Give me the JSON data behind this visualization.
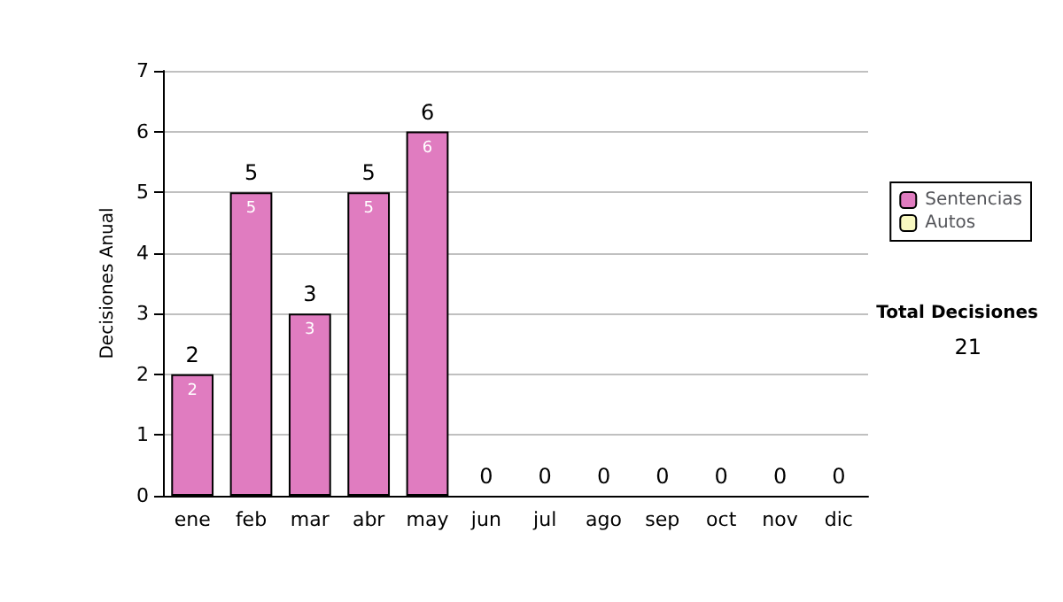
{
  "chart_data": {
    "type": "bar",
    "ylabel": "Decisiones Anual",
    "categories": [
      "ene",
      "feb",
      "mar",
      "abr",
      "may",
      "jun",
      "jul",
      "ago",
      "sep",
      "oct",
      "nov",
      "dic"
    ],
    "stacked": true,
    "series": [
      {
        "name": "Sentencias",
        "color": "#e07cc0",
        "values": [
          2,
          5,
          3,
          5,
          6,
          0,
          0,
          0,
          0,
          0,
          0,
          0
        ],
        "value_labels": [
          "2",
          "5",
          "3",
          "5",
          "6",
          null,
          null,
          null,
          null,
          null,
          null,
          null
        ]
      },
      {
        "name": "Autos",
        "color": "#f8f8c0",
        "values": [
          0,
          0,
          0,
          0,
          0,
          0,
          0,
          0,
          0,
          0,
          0,
          0
        ]
      }
    ],
    "totals": [
      "2",
      "5",
      "3",
      "5",
      "6",
      "0",
      "0",
      "0",
      "0",
      "0",
      "0",
      "0"
    ],
    "ylim": [
      0,
      7
    ],
    "yticks": [
      0,
      1,
      2,
      3,
      4,
      5,
      6,
      7
    ],
    "grid": "y",
    "legend": "right",
    "annotations": [
      "Total Decisiones",
      "21"
    ]
  }
}
